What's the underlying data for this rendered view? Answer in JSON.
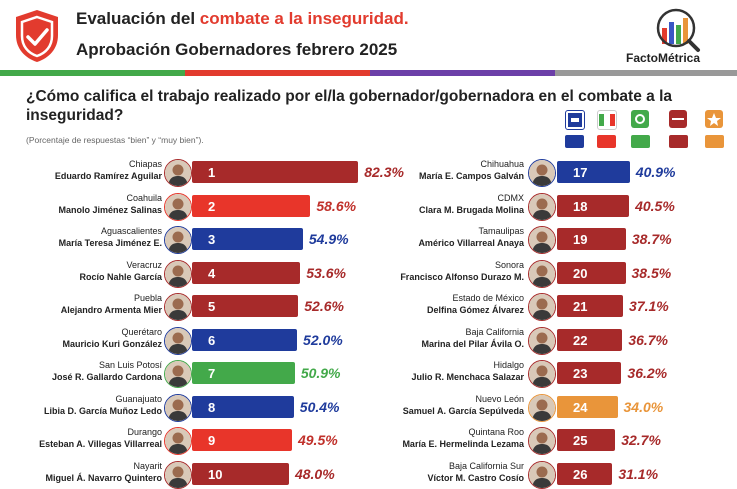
{
  "header": {
    "title_prefix": "Evaluación del ",
    "title_highlight": "combate a la inseguridad.",
    "subtitle": "Aprobación Gobernadores febrero 2025",
    "brand": "FactoMétrica"
  },
  "question": "¿Cómo califica el trabajo realizado por el/la gobernador/gobernadora en el combate a la inseguridad?",
  "note": "(Porcentaje de respuestas “bien” y “muy bien”).",
  "colors": {
    "pan": "#1f3b9c",
    "pri": "#e8352a",
    "pvem": "#43a94a",
    "morena": "#a72a2a",
    "mc": "#e9953a",
    "brand_red": "#e23b2e"
  },
  "chart_data": {
    "type": "bar",
    "orientation": "horizontal",
    "title": "Aprobación Gobernadores febrero 2025",
    "xlim": [
      0,
      100
    ],
    "governors": [
      {
        "rank": 1,
        "state": "Chiapas",
        "name": "Eduardo Ramírez Aguilar",
        "value": 82.3,
        "party": "morena"
      },
      {
        "rank": 2,
        "state": "Coahuila",
        "name": "Manolo Jiménez Salinas",
        "value": 58.6,
        "party": "pri"
      },
      {
        "rank": 3,
        "state": "Aguascalientes",
        "name": "María Teresa Jiménez E.",
        "value": 54.9,
        "party": "pan"
      },
      {
        "rank": 4,
        "state": "Veracruz",
        "name": "Rocío Nahle García",
        "value": 53.6,
        "party": "morena"
      },
      {
        "rank": 5,
        "state": "Puebla",
        "name": "Alejandro Armenta Mier",
        "value": 52.6,
        "party": "morena"
      },
      {
        "rank": 6,
        "state": "Querétaro",
        "name": "Mauricio Kuri González",
        "value": 52.0,
        "party": "pan"
      },
      {
        "rank": 7,
        "state": "San Luis Potosí",
        "name": "José R. Gallardo Cardona",
        "value": 50.9,
        "party": "pvem"
      },
      {
        "rank": 8,
        "state": "Guanajuato",
        "name": "Libia D. García Muñoz Ledo",
        "value": 50.4,
        "party": "pan"
      },
      {
        "rank": 9,
        "state": "Durango",
        "name": "Esteban A. Villegas Villarreal",
        "value": 49.5,
        "party": "pri"
      },
      {
        "rank": 10,
        "state": "Nayarit",
        "name": "Miguel Á. Navarro Quintero",
        "value": 48.0,
        "party": "morena"
      },
      {
        "rank": 17,
        "state": "Chihuahua",
        "name": "María E. Campos Galván",
        "value": 40.9,
        "party": "pan"
      },
      {
        "rank": 18,
        "state": "CDMX",
        "name": "Clara M. Brugada Molina",
        "value": 40.5,
        "party": "morena"
      },
      {
        "rank": 19,
        "state": "Tamaulipas",
        "name": "Américo Villarreal Anaya",
        "value": 38.7,
        "party": "morena"
      },
      {
        "rank": 20,
        "state": "Sonora",
        "name": "Francisco Alfonso Durazo M.",
        "value": 38.5,
        "party": "morena"
      },
      {
        "rank": 21,
        "state": "Estado de México",
        "name": "Delfina Gómez Álvarez",
        "value": 37.1,
        "party": "morena"
      },
      {
        "rank": 22,
        "state": "Baja California",
        "name": "Marina del Pilar Ávila O.",
        "value": 36.7,
        "party": "morena"
      },
      {
        "rank": 23,
        "state": "Hidalgo",
        "name": "Julio R. Menchaca Salazar",
        "value": 36.2,
        "party": "morena"
      },
      {
        "rank": 24,
        "state": "Nuevo León",
        "name": "Samuel A. García Sepúlveda",
        "value": 34.0,
        "party": "mc"
      },
      {
        "rank": 25,
        "state": "Quintana Roo",
        "name": "María E. Hermelinda Lezama",
        "value": 32.7,
        "party": "morena"
      },
      {
        "rank": 26,
        "state": "Baja California Sur",
        "name": "Víctor M. Castro Cosío",
        "value": 31.1,
        "party": "morena"
      }
    ]
  }
}
